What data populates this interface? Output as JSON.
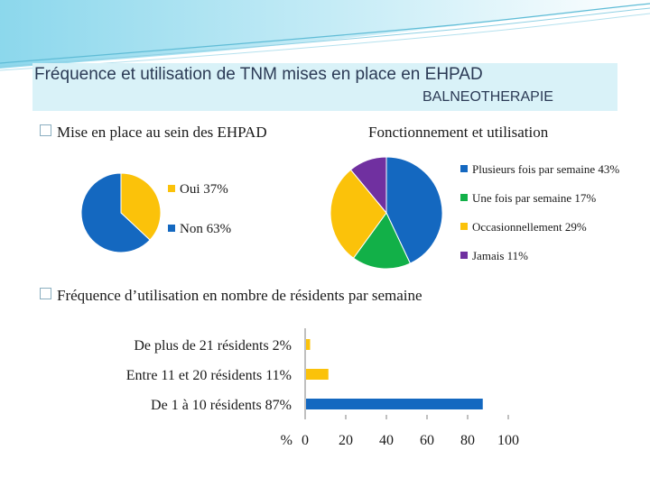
{
  "header": {
    "title_line1": "Fréquence et utilisation de TNM mises en place en EHPAD",
    "title_line2": "BALNEOTHERAPIE"
  },
  "sections": {
    "mise_en_place": "Mise en place au sein des EHPAD",
    "fonctionnement": "Fonctionnement et utilisation",
    "frequence": "Fréquence d’utilisation en nombre de résidents par semaine"
  },
  "colors": {
    "yellow": "#fbc20a",
    "blue": "#1468c0",
    "green": "#12b048",
    "purple": "#7030a0"
  },
  "chart_data": [
    {
      "type": "pie",
      "categories": [
        "Oui",
        "Non"
      ],
      "values": [
        37,
        63
      ],
      "colors": [
        "#fbc20a",
        "#1468c0"
      ],
      "legend": [
        "Oui 37%",
        "Non 63%"
      ]
    },
    {
      "type": "pie",
      "categories": [
        "Plusieurs fois par semaine",
        "Une fois par semaine",
        "Occasionnellement",
        "Jamais"
      ],
      "values": [
        43,
        17,
        29,
        11
      ],
      "colors": [
        "#1468c0",
        "#12b048",
        "#fbc20a",
        "#7030a0"
      ],
      "legend": [
        "Plusieurs fois par semaine 43%",
        "Une fois par semaine 17%",
        "Occasionnellement 29%",
        "Jamais 11%"
      ]
    },
    {
      "type": "bar",
      "orientation": "horizontal",
      "categories": [
        "De plus de 21 résidents 2%",
        "Entre 11 et 20 résidents 11%",
        "De 1 à 10 résidents 87%"
      ],
      "values": [
        2,
        11,
        87
      ],
      "colors": [
        "#fbc20a",
        "#fbc20a",
        "#1468c0"
      ],
      "xlim": [
        0,
        100
      ],
      "xticks": [
        0,
        20,
        40,
        60,
        80,
        100
      ],
      "xunit": "%"
    }
  ]
}
